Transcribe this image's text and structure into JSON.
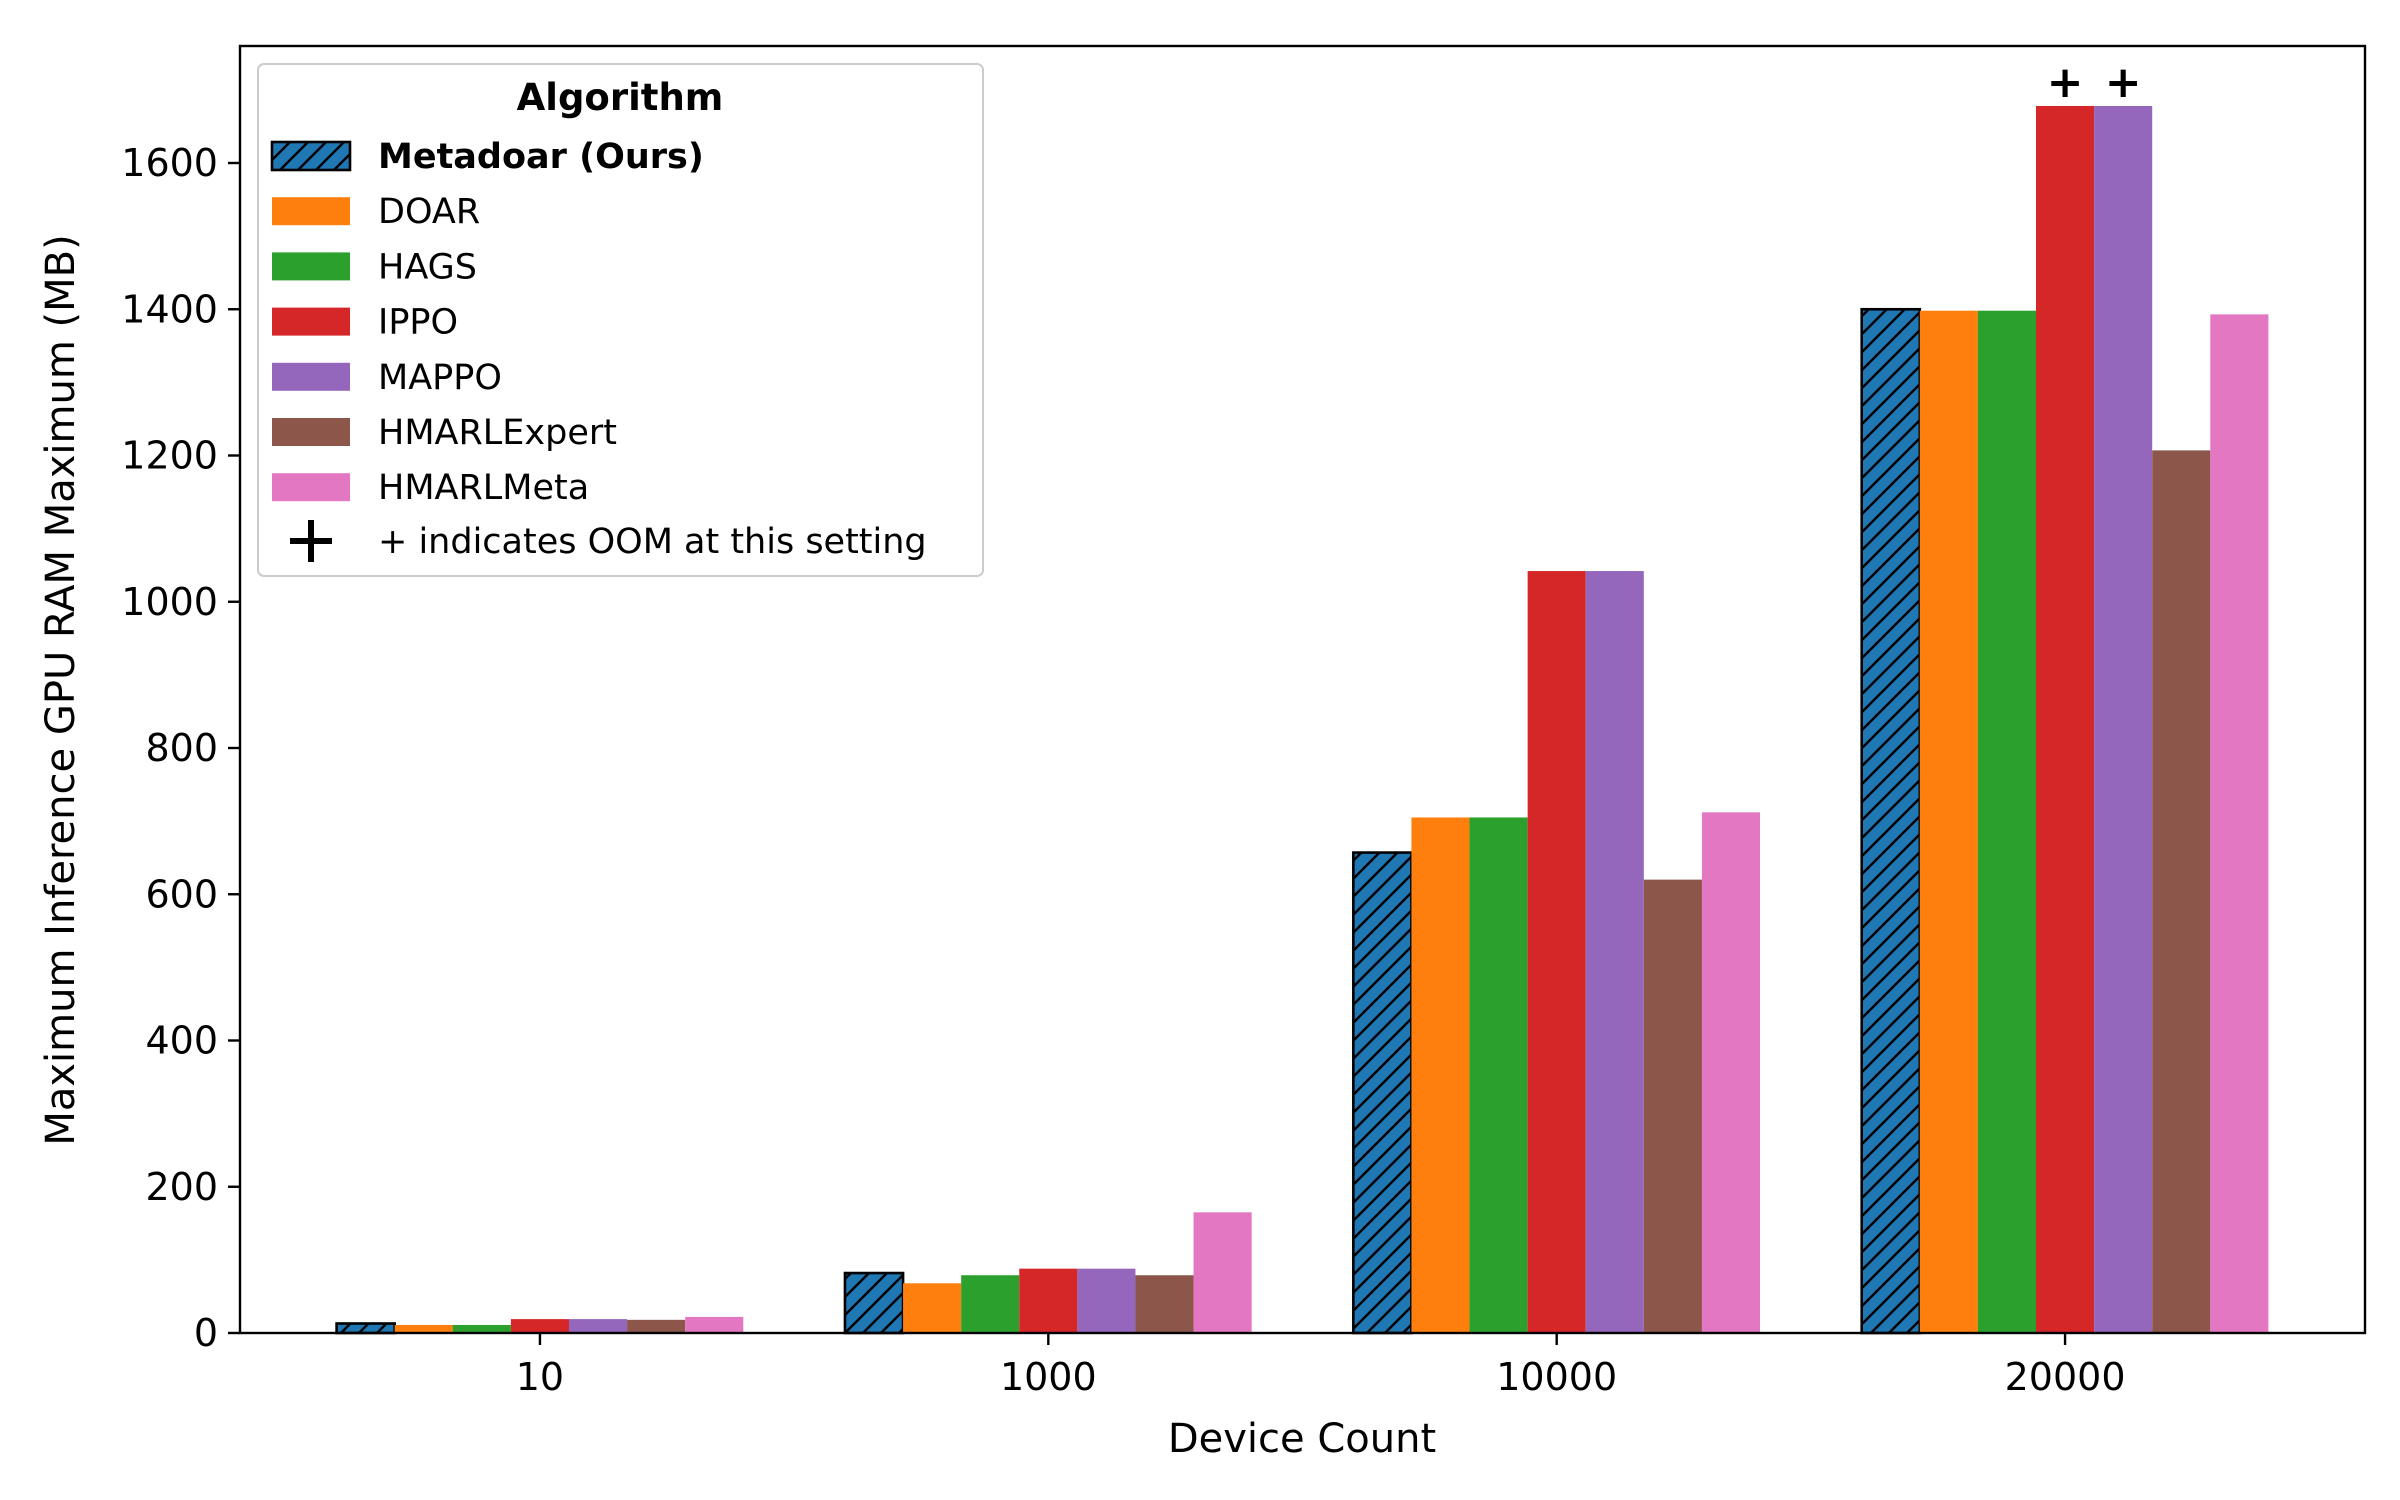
{
  "chart_data": {
    "type": "bar",
    "xlabel": "Device Count",
    "ylabel": "Maximum Inference GPU RAM Maximum (MB)",
    "categories": [
      "10",
      "1000",
      "10000",
      "20000"
    ],
    "ylim": [
      0,
      1760
    ],
    "yticks": [
      0,
      200,
      400,
      600,
      800,
      1000,
      1200,
      1400,
      1600
    ],
    "grid": false,
    "legend": {
      "title": "Algorithm",
      "placement": "upper-left",
      "oom_label": "+ indicates OOM at this setting"
    },
    "oom_marker": "+",
    "series": [
      {
        "name": "Metadoar (Ours)",
        "color": "#1f77b4",
        "hatch": true,
        "bold": true,
        "values": [
          13,
          82,
          657,
          1400
        ],
        "oom": [
          false,
          false,
          false,
          false
        ]
      },
      {
        "name": "DOAR",
        "color": "#ff7f0e",
        "values": [
          11,
          68,
          705,
          1398
        ],
        "oom": [
          false,
          false,
          false,
          false
        ]
      },
      {
        "name": "HAGS",
        "color": "#2ca02c",
        "values": [
          11,
          79,
          705,
          1398
        ],
        "oom": [
          false,
          false,
          false,
          false
        ]
      },
      {
        "name": "IPPO",
        "color": "#d62728",
        "values": [
          19,
          88,
          1042,
          1678
        ],
        "oom": [
          false,
          false,
          false,
          true
        ]
      },
      {
        "name": "MAPPO",
        "color": "#9467bd",
        "values": [
          19,
          88,
          1042,
          1678
        ],
        "oom": [
          false,
          false,
          false,
          true
        ]
      },
      {
        "name": "HMARLExpert",
        "color": "#8c564b",
        "values": [
          18,
          79,
          620,
          1207
        ],
        "oom": [
          false,
          false,
          false,
          false
        ]
      },
      {
        "name": "HMARLMeta",
        "color": "#e377c2",
        "values": [
          22,
          165,
          712,
          1393
        ],
        "oom": [
          false,
          false,
          false,
          false
        ]
      }
    ]
  }
}
